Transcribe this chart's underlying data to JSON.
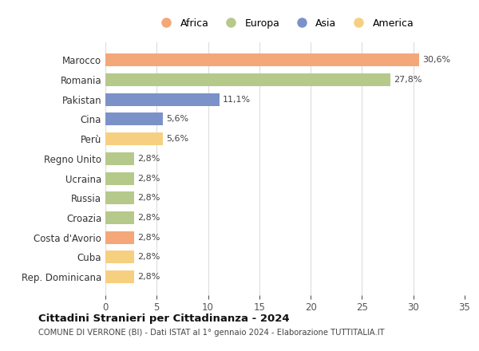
{
  "countries": [
    "Marocco",
    "Romania",
    "Pakistan",
    "Cina",
    "Perù",
    "Regno Unito",
    "Ucraina",
    "Russia",
    "Croazia",
    "Costa d'Avorio",
    "Cuba",
    "Rep. Dominicana"
  ],
  "values": [
    30.6,
    27.8,
    11.1,
    5.6,
    5.6,
    2.8,
    2.8,
    2.8,
    2.8,
    2.8,
    2.8,
    2.8
  ],
  "labels": [
    "30,6%",
    "27,8%",
    "11,1%",
    "5,6%",
    "5,6%",
    "2,8%",
    "2,8%",
    "2,8%",
    "2,8%",
    "2,8%",
    "2,8%",
    "2,8%"
  ],
  "continents": [
    "Africa",
    "Europa",
    "Asia",
    "Asia",
    "America",
    "Europa",
    "Europa",
    "Europa",
    "Europa",
    "Africa",
    "America",
    "America"
  ],
  "colors": {
    "Africa": "#F4A778",
    "Europa": "#B5C98A",
    "Asia": "#7B92C9",
    "America": "#F6D080"
  },
  "legend_order": [
    "Africa",
    "Europa",
    "Asia",
    "America"
  ],
  "title": "Cittadini Stranieri per Cittadinanza - 2024",
  "subtitle": "COMUNE DI VERRONE (BI) - Dati ISTAT al 1° gennaio 2024 - Elaborazione TUTTITALIA.IT",
  "xlim": [
    0,
    35
  ],
  "xticks": [
    0,
    5,
    10,
    15,
    20,
    25,
    30,
    35
  ],
  "background_color": "#ffffff",
  "grid_color": "#dddddd"
}
